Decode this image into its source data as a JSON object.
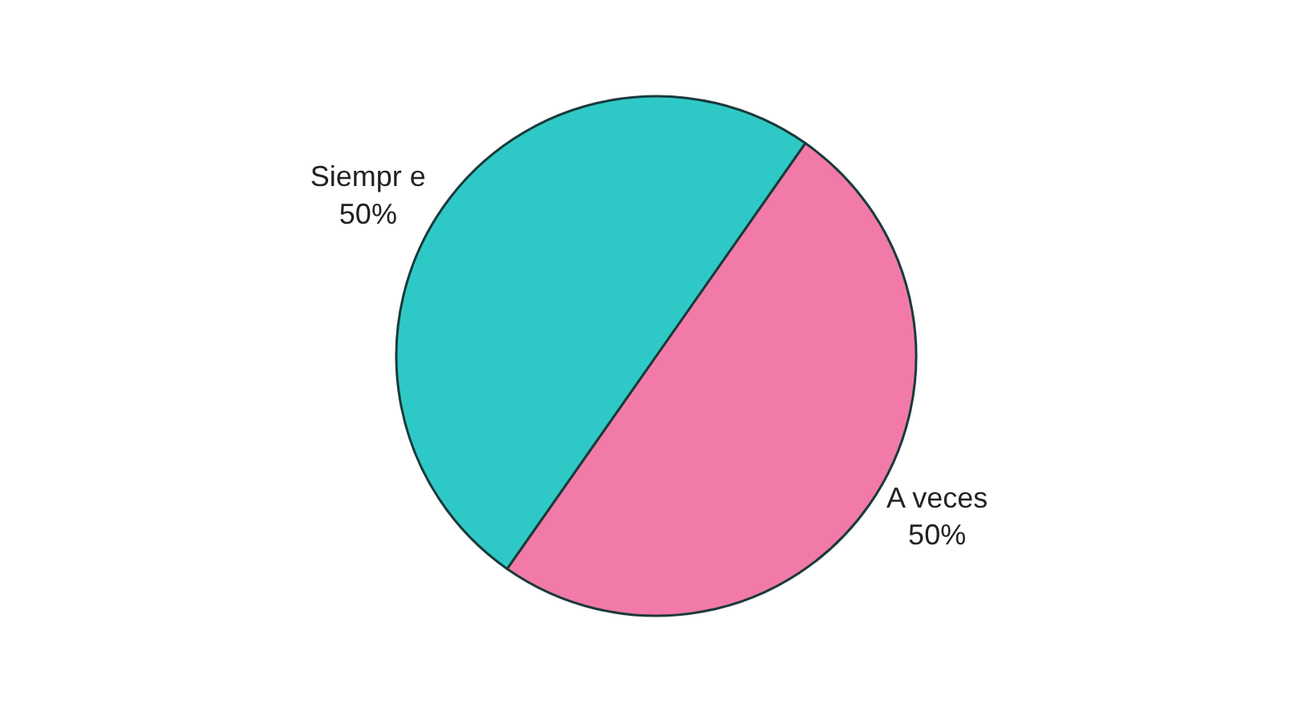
{
  "chart_data": {
    "type": "pie",
    "categories": [
      "A veces",
      "Siempr e"
    ],
    "values": [
      50,
      50
    ],
    "value_labels": [
      "50%",
      "50%"
    ],
    "colors": [
      "#f27aa8",
      "#2ec9c6"
    ],
    "legend": false
  }
}
